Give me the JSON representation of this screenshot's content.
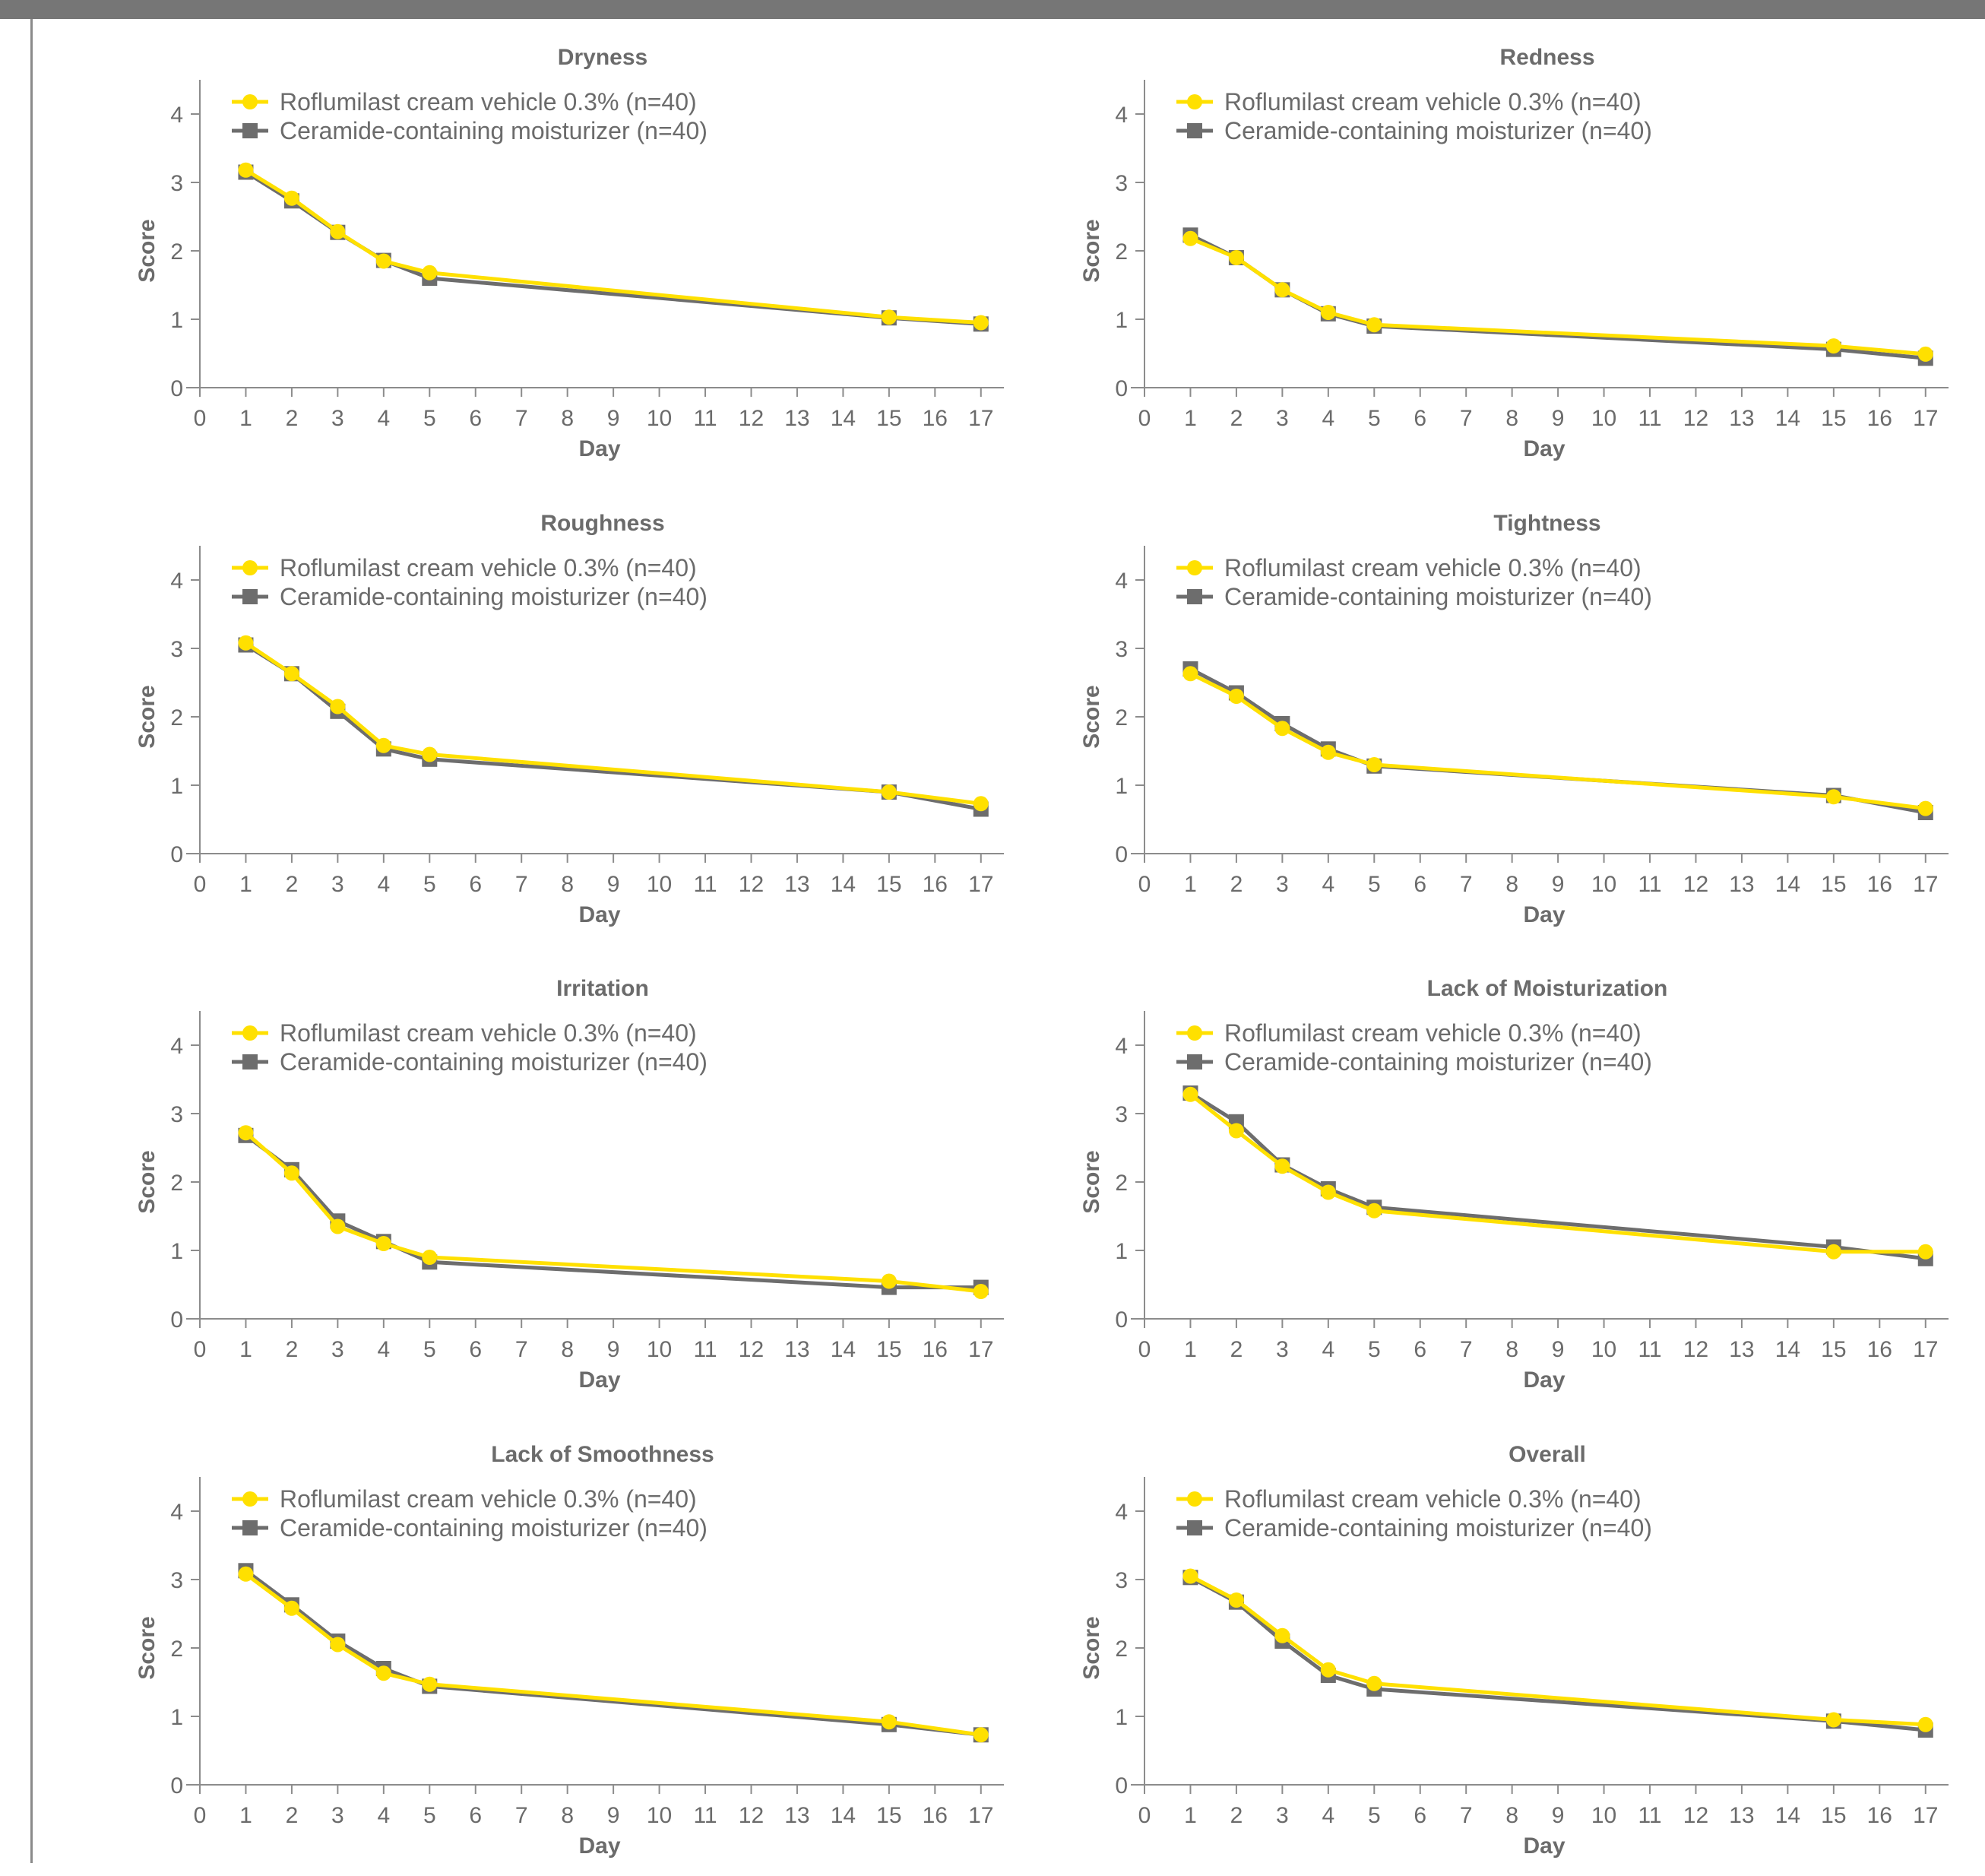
{
  "chart_data": [
    {
      "type": "line",
      "title": "Dryness",
      "xlabel": "Day",
      "ylabel": "Score",
      "x_ticks": [
        0,
        1,
        2,
        3,
        4,
        5,
        6,
        7,
        8,
        9,
        10,
        11,
        12,
        13,
        14,
        15,
        16,
        17
      ],
      "y_ticks": [
        0,
        1,
        2,
        3,
        4
      ],
      "xlim": [
        0,
        17.5
      ],
      "ylim": [
        0,
        4.5
      ],
      "legend_position": "top-left",
      "x": [
        1,
        2,
        3,
        4,
        5,
        15,
        17
      ],
      "series": [
        {
          "name": "Roflumilast cream vehicle 0.3% (n=40)",
          "color": "#FFE000",
          "marker": "circle",
          "values": [
            3.18,
            2.77,
            2.28,
            1.85,
            1.68,
            1.03,
            0.95
          ]
        },
        {
          "name": "Ceramide-containing moisturizer (n=40)",
          "color": "#6D6D6D",
          "marker": "square",
          "values": [
            3.15,
            2.73,
            2.27,
            1.86,
            1.6,
            1.02,
            0.93
          ]
        }
      ]
    },
    {
      "type": "line",
      "title": "Redness",
      "xlabel": "Day",
      "ylabel": "Score",
      "x_ticks": [
        0,
        1,
        2,
        3,
        4,
        5,
        6,
        7,
        8,
        9,
        10,
        11,
        12,
        13,
        14,
        15,
        16,
        17
      ],
      "y_ticks": [
        0,
        1,
        2,
        3,
        4
      ],
      "xlim": [
        0,
        17.5
      ],
      "ylim": [
        0,
        4.5
      ],
      "legend_position": "top-left",
      "x": [
        1,
        2,
        3,
        4,
        5,
        15,
        17
      ],
      "series": [
        {
          "name": "Roflumilast cream vehicle 0.3% (n=40)",
          "color": "#FFE000",
          "marker": "circle",
          "values": [
            2.18,
            1.9,
            1.43,
            1.1,
            0.92,
            0.61,
            0.49
          ]
        },
        {
          "name": "Ceramide-containing moisturizer (n=40)",
          "color": "#6D6D6D",
          "marker": "square",
          "values": [
            2.23,
            1.9,
            1.43,
            1.08,
            0.9,
            0.56,
            0.43
          ]
        }
      ]
    },
    {
      "type": "line",
      "title": "Roughness",
      "xlabel": "Day",
      "ylabel": "Score",
      "x_ticks": [
        0,
        1,
        2,
        3,
        4,
        5,
        6,
        7,
        8,
        9,
        10,
        11,
        12,
        13,
        14,
        15,
        16,
        17
      ],
      "y_ticks": [
        0,
        1,
        2,
        3,
        4
      ],
      "xlim": [
        0,
        17.5
      ],
      "ylim": [
        0,
        4.5
      ],
      "legend_position": "top-left",
      "x": [
        1,
        2,
        3,
        4,
        5,
        15,
        17
      ],
      "series": [
        {
          "name": "Roflumilast cream vehicle 0.3% (n=40)",
          "color": "#FFE000",
          "marker": "circle",
          "values": [
            3.08,
            2.63,
            2.15,
            1.58,
            1.45,
            0.9,
            0.73
          ]
        },
        {
          "name": "Ceramide-containing moisturizer (n=40)",
          "color": "#6D6D6D",
          "marker": "square",
          "values": [
            3.05,
            2.63,
            2.08,
            1.53,
            1.38,
            0.9,
            0.65
          ]
        }
      ]
    },
    {
      "type": "line",
      "title": "Tightness",
      "xlabel": "Day",
      "ylabel": "Score",
      "x_ticks": [
        0,
        1,
        2,
        3,
        4,
        5,
        6,
        7,
        8,
        9,
        10,
        11,
        12,
        13,
        14,
        15,
        16,
        17
      ],
      "y_ticks": [
        0,
        1,
        2,
        3,
        4
      ],
      "xlim": [
        0,
        17.5
      ],
      "ylim": [
        0,
        4.5
      ],
      "legend_position": "top-left",
      "x": [
        1,
        2,
        3,
        4,
        5,
        15,
        17
      ],
      "series": [
        {
          "name": "Roflumilast cream vehicle 0.3% (n=40)",
          "color": "#FFE000",
          "marker": "circle",
          "values": [
            2.63,
            2.3,
            1.83,
            1.48,
            1.3,
            0.83,
            0.66
          ]
        },
        {
          "name": "Ceramide-containing moisturizer (n=40)",
          "color": "#6D6D6D",
          "marker": "square",
          "values": [
            2.7,
            2.35,
            1.9,
            1.53,
            1.28,
            0.85,
            0.6
          ]
        }
      ]
    },
    {
      "type": "line",
      "title": "Irritation",
      "xlabel": "Day",
      "ylabel": "Score",
      "x_ticks": [
        0,
        1,
        2,
        3,
        4,
        5,
        6,
        7,
        8,
        9,
        10,
        11,
        12,
        13,
        14,
        15,
        16,
        17
      ],
      "y_ticks": [
        0,
        1,
        2,
        3,
        4
      ],
      "xlim": [
        0,
        17.5
      ],
      "ylim": [
        0,
        4.5
      ],
      "legend_position": "top-left",
      "x": [
        1,
        2,
        3,
        4,
        5,
        15,
        17
      ],
      "series": [
        {
          "name": "Roflumilast cream vehicle 0.3% (n=40)",
          "color": "#FFE000",
          "marker": "circle",
          "values": [
            2.72,
            2.13,
            1.35,
            1.1,
            0.9,
            0.55,
            0.4
          ]
        },
        {
          "name": "Ceramide-containing moisturizer (n=40)",
          "color": "#6D6D6D",
          "marker": "square",
          "values": [
            2.68,
            2.18,
            1.43,
            1.13,
            0.83,
            0.46,
            0.46
          ]
        }
      ]
    },
    {
      "type": "line",
      "title": "Lack of Moisturization",
      "xlabel": "Day",
      "ylabel": "Score",
      "x_ticks": [
        0,
        1,
        2,
        3,
        4,
        5,
        6,
        7,
        8,
        9,
        10,
        11,
        12,
        13,
        14,
        15,
        16,
        17
      ],
      "y_ticks": [
        0,
        1,
        2,
        3,
        4
      ],
      "xlim": [
        0,
        17.5
      ],
      "ylim": [
        0,
        4.5
      ],
      "legend_position": "top-left",
      "x": [
        1,
        2,
        3,
        4,
        5,
        15,
        17
      ],
      "series": [
        {
          "name": "Roflumilast cream vehicle 0.3% (n=40)",
          "color": "#FFE000",
          "marker": "circle",
          "values": [
            3.28,
            2.75,
            2.23,
            1.85,
            1.58,
            0.98,
            0.98
          ]
        },
        {
          "name": "Ceramide-containing moisturizer (n=40)",
          "color": "#6D6D6D",
          "marker": "square",
          "values": [
            3.3,
            2.88,
            2.25,
            1.9,
            1.63,
            1.05,
            0.88
          ]
        }
      ]
    },
    {
      "type": "line",
      "title": "Lack of Smoothness",
      "xlabel": "Day",
      "ylabel": "Score",
      "x_ticks": [
        0,
        1,
        2,
        3,
        4,
        5,
        6,
        7,
        8,
        9,
        10,
        11,
        12,
        13,
        14,
        15,
        16,
        17
      ],
      "y_ticks": [
        0,
        1,
        2,
        3,
        4
      ],
      "xlim": [
        0,
        17.5
      ],
      "ylim": [
        0,
        4.5
      ],
      "legend_position": "top-left",
      "x": [
        1,
        2,
        3,
        4,
        5,
        15,
        17
      ],
      "series": [
        {
          "name": "Roflumilast cream vehicle 0.3% (n=40)",
          "color": "#FFE000",
          "marker": "circle",
          "values": [
            3.08,
            2.58,
            2.05,
            1.63,
            1.47,
            0.92,
            0.73
          ]
        },
        {
          "name": "Ceramide-containing moisturizer (n=40)",
          "color": "#6D6D6D",
          "marker": "square",
          "values": [
            3.13,
            2.63,
            2.1,
            1.7,
            1.44,
            0.88,
            0.73
          ]
        }
      ]
    },
    {
      "type": "line",
      "title": "Overall",
      "xlabel": "Day",
      "ylabel": "Score",
      "x_ticks": [
        0,
        1,
        2,
        3,
        4,
        5,
        6,
        7,
        8,
        9,
        10,
        11,
        12,
        13,
        14,
        15,
        16,
        17
      ],
      "y_ticks": [
        0,
        1,
        2,
        3,
        4
      ],
      "xlim": [
        0,
        17.5
      ],
      "ylim": [
        0,
        4.5
      ],
      "legend_position": "top-left",
      "x": [
        1,
        2,
        3,
        4,
        5,
        15,
        17
      ],
      "series": [
        {
          "name": "Roflumilast cream vehicle 0.3% (n=40)",
          "color": "#FFE000",
          "marker": "circle",
          "values": [
            3.05,
            2.7,
            2.18,
            1.68,
            1.48,
            0.95,
            0.88
          ]
        },
        {
          "name": "Ceramide-containing moisturizer (n=40)",
          "color": "#6D6D6D",
          "marker": "square",
          "values": [
            3.03,
            2.67,
            2.1,
            1.6,
            1.4,
            0.93,
            0.8
          ]
        }
      ]
    }
  ]
}
